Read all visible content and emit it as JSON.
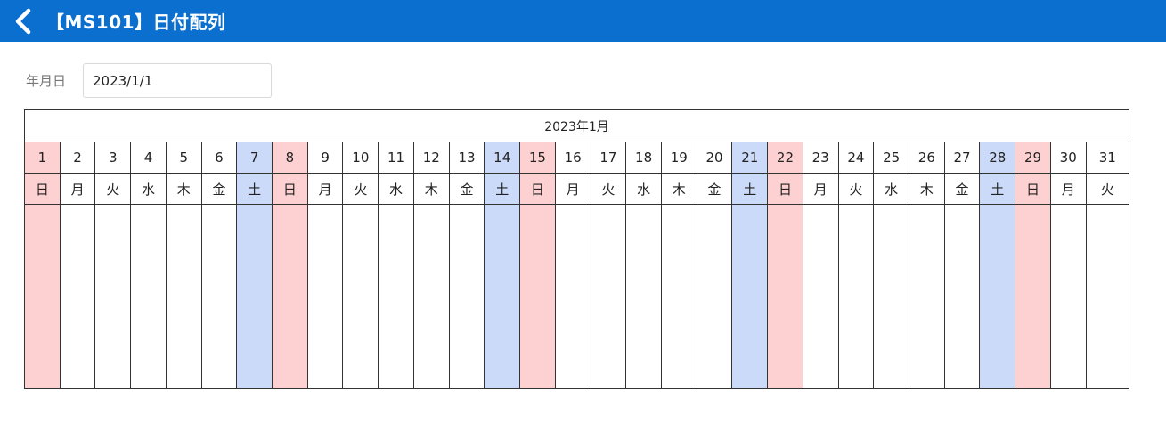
{
  "header": {
    "title": "【MS101】日付配列"
  },
  "form": {
    "label": "年月日",
    "value": "2023/1/1"
  },
  "calendar": {
    "month_title": "2023年1月",
    "days": [
      {
        "d": "1",
        "w": "日"
      },
      {
        "d": "2",
        "w": "月"
      },
      {
        "d": "3",
        "w": "火"
      },
      {
        "d": "4",
        "w": "水"
      },
      {
        "d": "5",
        "w": "木"
      },
      {
        "d": "6",
        "w": "金"
      },
      {
        "d": "7",
        "w": "土"
      },
      {
        "d": "8",
        "w": "日"
      },
      {
        "d": "9",
        "w": "月"
      },
      {
        "d": "10",
        "w": "火"
      },
      {
        "d": "11",
        "w": "水"
      },
      {
        "d": "12",
        "w": "木"
      },
      {
        "d": "13",
        "w": "金"
      },
      {
        "d": "14",
        "w": "土"
      },
      {
        "d": "15",
        "w": "日"
      },
      {
        "d": "16",
        "w": "月"
      },
      {
        "d": "17",
        "w": "火"
      },
      {
        "d": "18",
        "w": "水"
      },
      {
        "d": "19",
        "w": "木"
      },
      {
        "d": "20",
        "w": "金"
      },
      {
        "d": "21",
        "w": "土"
      },
      {
        "d": "22",
        "w": "日"
      },
      {
        "d": "23",
        "w": "月"
      },
      {
        "d": "24",
        "w": "火"
      },
      {
        "d": "25",
        "w": "水"
      },
      {
        "d": "26",
        "w": "木"
      },
      {
        "d": "27",
        "w": "金"
      },
      {
        "d": "28",
        "w": "土"
      },
      {
        "d": "29",
        "w": "日"
      },
      {
        "d": "30",
        "w": "月"
      },
      {
        "d": "31",
        "w": "火"
      }
    ]
  },
  "colors": {
    "header_bg": "#0b6fcf",
    "saturday": "#ccdaf9",
    "sunday": "#fdd1d1"
  },
  "icons": {
    "back": "chevron-left-icon"
  }
}
